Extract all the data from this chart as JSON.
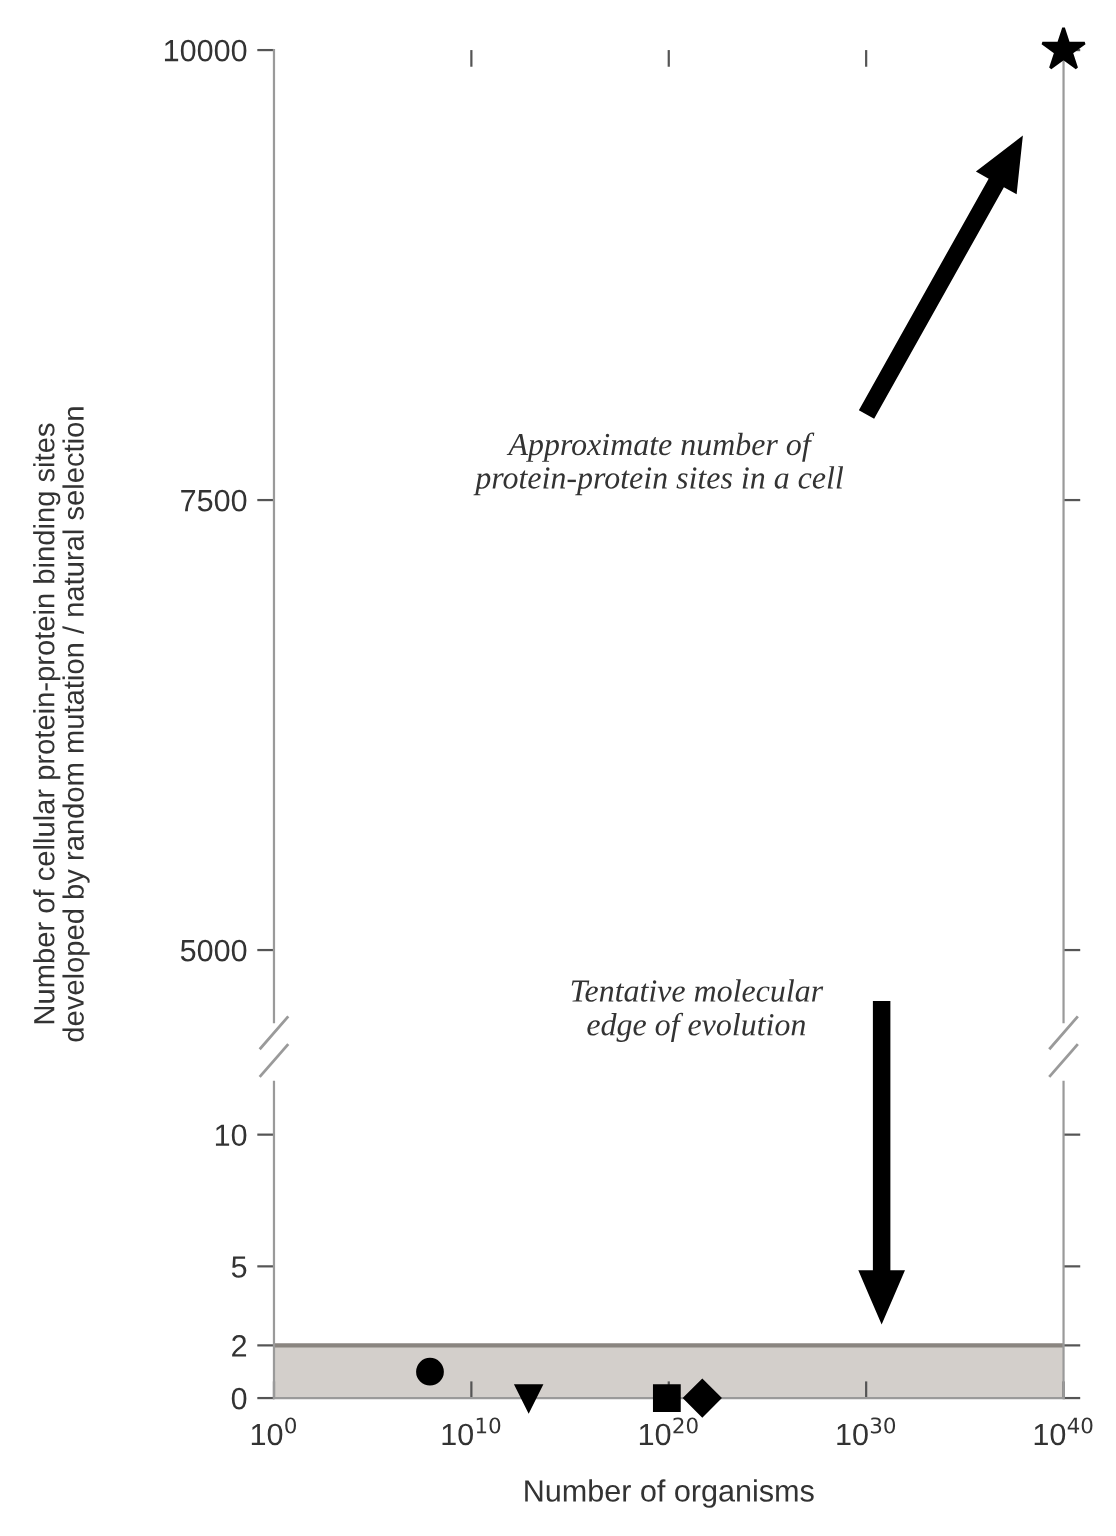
{
  "chart_data": [
    {
      "type": "scatter",
      "ylabel": "Number of cellular protein-protein binding sites\ndeveloped by random mutation / natural selection",
      "log": "x",
      "xlim": [
        1,
        1e+40
      ],
      "xticks": [
        {
          "value": 10000000000.0,
          "label": null
        },
        {
          "value": 1e+20,
          "label": null
        },
        {
          "value": 1e+30,
          "label": null
        }
      ],
      "ylim": [
        4600,
        10000
      ],
      "yticks": [
        5000,
        7500,
        10000
      ],
      "tick_labels": "y",
      "grid": false,
      "series": [
        {
          "color": "#000000",
          "marker": "star",
          "x": [
            1e+40
          ],
          "values": [
            10000
          ]
        }
      ],
      "annotations": [
        "Approximate number of\nprotein-protein sites in a cell"
      ]
    },
    {
      "type": "scatter",
      "xlabel": "Number of organisms",
      "log": "x",
      "xlim": [
        1,
        1e+40
      ],
      "xticks": [
        {
          "value": 1,
          "label": "10$^{0}$"
        },
        {
          "value": 10000000000.0,
          "label": "10$^{10}$"
        },
        {
          "value": 1e+20,
          "label": "10$^{20}$"
        },
        {
          "value": 1e+30,
          "label": "10$^{30}$"
        },
        {
          "value": 1e+40,
          "label": "10$^{40}$"
        }
      ],
      "ylim": [
        0,
        12
      ],
      "yticks": [
        0,
        2,
        5,
        10
      ],
      "grid": false,
      "bands": [
        {
          "axis": "y",
          "from": 0,
          "to": 2,
          "color": "#d3cfcb"
        }
      ],
      "ref_lines": [
        {
          "axis": "y",
          "value": 2,
          "color": "#8a8580"
        }
      ],
      "series": [
        {
          "color": "#000000",
          "marker": "circle",
          "x": [
            80000000.0
          ],
          "values": [
            1
          ]
        },
        {
          "color": "#000000",
          "marker": "triangle",
          "x": [
            8000000000000.0
          ],
          "values": [
            0
          ]
        },
        {
          "color": "#000000",
          "marker": "square",
          "x": [
            8e+19
          ],
          "values": [
            0
          ]
        },
        {
          "color": "#000000",
          "marker": "diamond",
          "x": [
            5e+21
          ],
          "values": [
            0
          ]
        }
      ],
      "annotations": [
        "Tentative molecular\nedge of evolution"
      ]
    }
  ]
}
